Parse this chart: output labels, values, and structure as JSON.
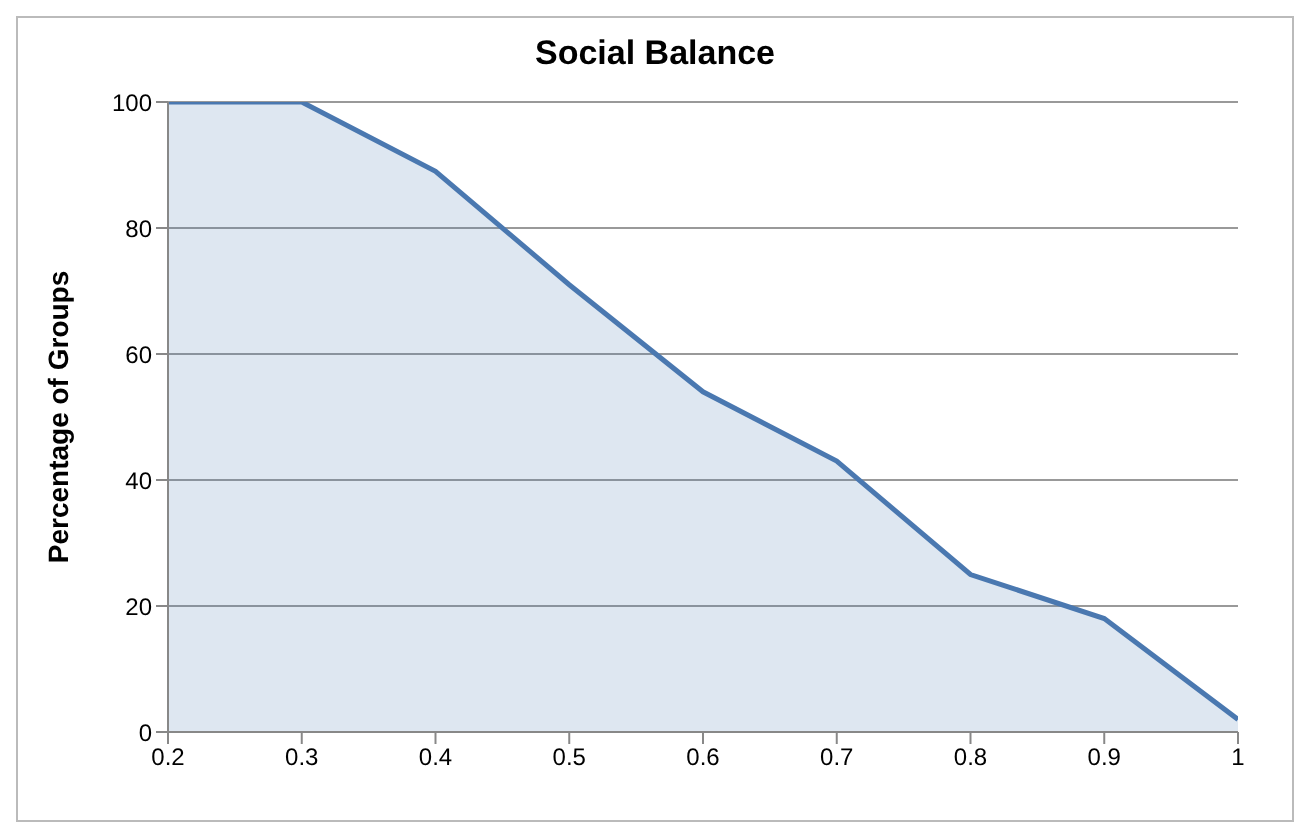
{
  "chart_data": {
    "type": "area",
    "title": "Social Balance",
    "ylabel": "Percentage of Groups",
    "x": [
      0.2,
      0.3,
      0.4,
      0.5,
      0.6,
      0.7,
      0.8,
      0.9,
      1
    ],
    "series": [
      {
        "color": "#4a78b0",
        "values": [
          100,
          100,
          89,
          71,
          54,
          43,
          25,
          18,
          2
        ]
      }
    ],
    "xlim": [
      0.2,
      1
    ],
    "xticks": [
      0.2,
      0.3,
      0.4,
      0.5,
      0.6,
      0.7,
      0.8,
      0.9,
      1
    ],
    "ylim": [
      0,
      100
    ],
    "yticks": [
      0,
      20,
      40,
      60,
      80,
      100
    ],
    "grid": "y",
    "legend": false
  }
}
